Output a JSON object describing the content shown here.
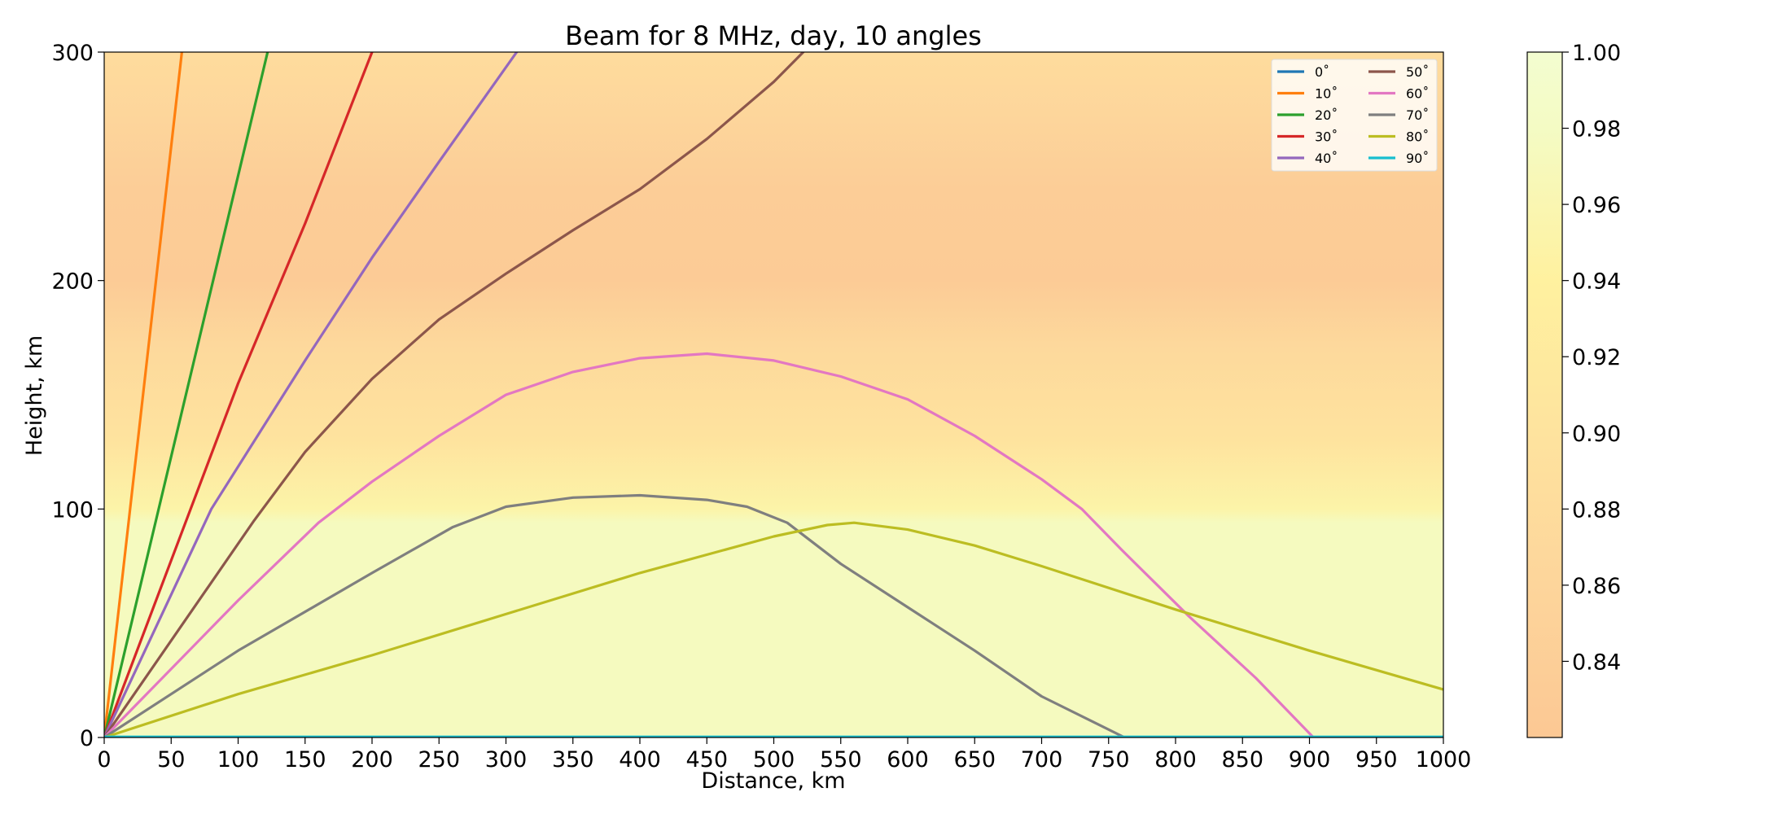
{
  "chart_data": {
    "type": "line",
    "title": "Beam for 8 MHz, day, 10 angles",
    "xlabel": "Distance, km",
    "ylabel": "Height, km",
    "xlim": [
      0,
      1000
    ],
    "ylim": [
      0,
      300
    ],
    "xticks": [
      "0",
      "50",
      "100",
      "150",
      "200",
      "250",
      "300",
      "350",
      "400",
      "450",
      "500",
      "550",
      "600",
      "650",
      "700",
      "750",
      "800",
      "850",
      "900",
      "950",
      "1000"
    ],
    "yticks": [
      "0",
      "100",
      "200",
      "300"
    ],
    "grid": false,
    "legend": {
      "position": "top-right",
      "columns": 2
    },
    "background": {
      "description": "refractive index field vs height",
      "stops": [
        {
          "height": 0,
          "value": 0.975
        },
        {
          "height": 94,
          "value": 0.975
        },
        {
          "height": 100,
          "value": 0.95
        },
        {
          "height": 130,
          "value": 0.9
        },
        {
          "height": 170,
          "value": 0.87
        },
        {
          "height": 200,
          "value": 0.83
        },
        {
          "height": 240,
          "value": 0.835
        },
        {
          "height": 270,
          "value": 0.86
        },
        {
          "height": 300,
          "value": 0.88
        }
      ]
    },
    "colorbar": {
      "ticks": [
        "0.84",
        "0.86",
        "0.88",
        "0.90",
        "0.92",
        "0.94",
        "0.96",
        "0.98",
        "1.00"
      ],
      "tick_values": [
        0.84,
        0.86,
        0.88,
        0.9,
        0.92,
        0.94,
        0.96,
        0.98,
        1.0
      ],
      "range": [
        0.82,
        1.0
      ],
      "stops": [
        {
          "value": 0.82,
          "color": "#fcc894"
        },
        {
          "value": 0.86,
          "color": "#fdd59b"
        },
        {
          "value": 0.9,
          "color": "#fee39e"
        },
        {
          "value": 0.94,
          "color": "#fff19f"
        },
        {
          "value": 0.98,
          "color": "#f4fbc4"
        },
        {
          "value": 1.0,
          "color": "#f3fdd0"
        }
      ]
    },
    "series": [
      {
        "name": "0$^\\circ$",
        "label": "0˚",
        "color": "#1f77b4",
        "points": [
          [
            0,
            0
          ],
          [
            1000,
            0
          ]
        ]
      },
      {
        "name": "10$^\\circ$",
        "label": "10˚",
        "color": "#ff7f0e",
        "points": [
          [
            0,
            0
          ],
          [
            58,
            300
          ]
        ]
      },
      {
        "name": "20$^\\circ$",
        "label": "20˚",
        "color": "#2ca02c",
        "points": [
          [
            0,
            0
          ],
          [
            122,
            300
          ]
        ]
      },
      {
        "name": "30$^\\circ$",
        "label": "30˚",
        "color": "#d62728",
        "points": [
          [
            0,
            0
          ],
          [
            100,
            155
          ],
          [
            150,
            225
          ],
          [
            200,
            300
          ]
        ]
      },
      {
        "name": "40$^\\circ$",
        "label": "40˚",
        "color": "#9467bd",
        "points": [
          [
            0,
            0
          ],
          [
            80,
            100
          ],
          [
            150,
            165
          ],
          [
            200,
            210
          ],
          [
            250,
            252
          ],
          [
            308,
            300
          ]
        ]
      },
      {
        "name": "50$^\\circ$",
        "label": "50˚",
        "color": "#8c564b",
        "points": [
          [
            0,
            0
          ],
          [
            112,
            95
          ],
          [
            150,
            125
          ],
          [
            200,
            157
          ],
          [
            250,
            183
          ],
          [
            300,
            203
          ],
          [
            350,
            222
          ],
          [
            400,
            240
          ],
          [
            450,
            262
          ],
          [
            500,
            287
          ],
          [
            522,
            300
          ]
        ]
      },
      {
        "name": "60$^\\circ$",
        "label": "60˚",
        "color": "#e377c2",
        "points": [
          [
            0,
            0
          ],
          [
            100,
            60
          ],
          [
            160,
            94
          ],
          [
            200,
            112
          ],
          [
            250,
            132
          ],
          [
            300,
            150
          ],
          [
            350,
            160
          ],
          [
            400,
            166
          ],
          [
            450,
            168
          ],
          [
            500,
            165
          ],
          [
            550,
            158
          ],
          [
            600,
            148
          ],
          [
            650,
            132
          ],
          [
            700,
            113
          ],
          [
            730,
            100
          ],
          [
            760,
            82
          ],
          [
            810,
            53
          ],
          [
            860,
            26
          ],
          [
            903,
            0
          ]
        ]
      },
      {
        "name": "70$^\\circ$",
        "label": "70˚",
        "color": "#7f7f7f",
        "points": [
          [
            0,
            0
          ],
          [
            100,
            38
          ],
          [
            200,
            72
          ],
          [
            260,
            92
          ],
          [
            300,
            101
          ],
          [
            350,
            105
          ],
          [
            400,
            106
          ],
          [
            450,
            104
          ],
          [
            480,
            101
          ],
          [
            510,
            94
          ],
          [
            550,
            76
          ],
          [
            600,
            57
          ],
          [
            650,
            38
          ],
          [
            700,
            18
          ],
          [
            762,
            0
          ]
        ]
      },
      {
        "name": "80$^\\circ$",
        "label": "80˚",
        "color": "#bcbd22",
        "points": [
          [
            0,
            0
          ],
          [
            100,
            19
          ],
          [
            200,
            36
          ],
          [
            300,
            54
          ],
          [
            400,
            72
          ],
          [
            500,
            88
          ],
          [
            540,
            93
          ],
          [
            560,
            94
          ],
          [
            600,
            91
          ],
          [
            650,
            84
          ],
          [
            700,
            75
          ],
          [
            800,
            56
          ],
          [
            900,
            38
          ],
          [
            1000,
            21
          ]
        ]
      },
      {
        "name": "90$^\\circ$",
        "label": "90˚",
        "color": "#17becf",
        "points": [
          [
            0,
            0.3
          ],
          [
            1000,
            0.3
          ]
        ]
      }
    ]
  }
}
